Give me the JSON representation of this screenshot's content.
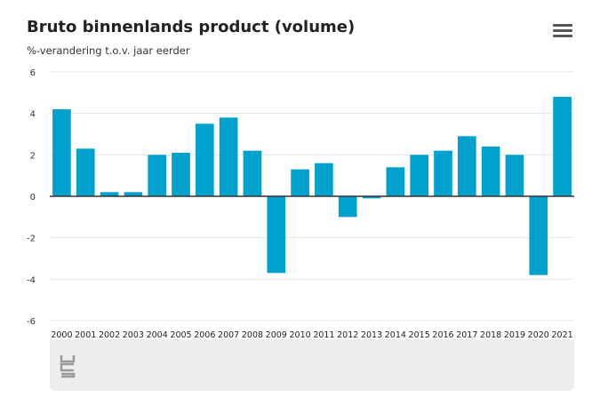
{
  "header": {
    "title": "Bruto binnenlands product (volume)",
    "subtitle": "%-verandering t.o.v. jaar eerder"
  },
  "menu": {
    "icon": "hamburger-menu-icon"
  },
  "footer": {
    "logo": "cbs-logo-icon"
  },
  "colors": {
    "bar": "#00A1CD",
    "grid": "#e6e6e6",
    "zero_line": "#333333",
    "footer_bg": "#eeeeee"
  },
  "chart_data": {
    "type": "bar",
    "title": "Bruto binnenlands product (volume)",
    "subtitle": "%-verandering t.o.v. jaar eerder",
    "xlabel": "",
    "ylabel": "",
    "ylim": [
      -6,
      6
    ],
    "yticks": [
      6,
      4,
      2,
      0,
      -2,
      -4,
      -6
    ],
    "grid": true,
    "legend": "none",
    "categories": [
      "2000",
      "2001",
      "2002",
      "2003",
      "2004",
      "2005",
      "2006",
      "2007",
      "2008",
      "2009",
      "2010",
      "2011",
      "2012",
      "2013",
      "2014",
      "2015",
      "2016",
      "2017",
      "2018",
      "2019",
      "2020",
      "2021"
    ],
    "values": [
      4.2,
      2.3,
      0.2,
      0.2,
      2.0,
      2.1,
      3.5,
      3.8,
      2.2,
      -3.7,
      1.3,
      1.6,
      -1.0,
      -0.1,
      1.4,
      2.0,
      2.2,
      2.9,
      2.4,
      2.0,
      -3.8,
      4.8
    ]
  }
}
